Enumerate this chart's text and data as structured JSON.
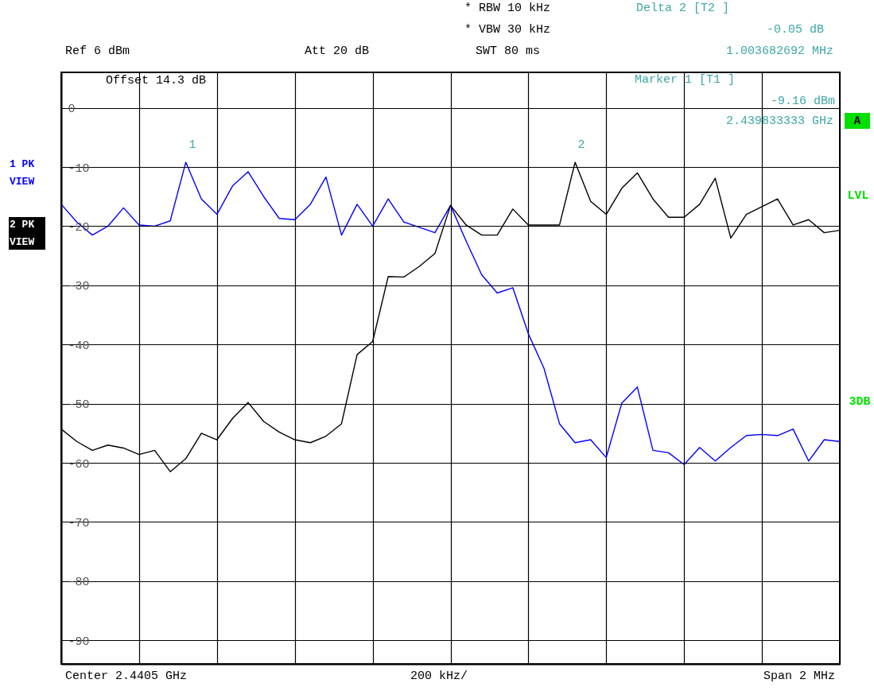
{
  "chart_data": {
    "type": "line",
    "categories": [
      null,
      null,
      null,
      null,
      null,
      null,
      null,
      null,
      null,
      null,
      null,
      null,
      null,
      null,
      null,
      null,
      null,
      null,
      null,
      null,
      null,
      null,
      null,
      null,
      null,
      null,
      null,
      null,
      null,
      null,
      null,
      null,
      null,
      null,
      null,
      null,
      null,
      null,
      null,
      null,
      null,
      null,
      null,
      null,
      null,
      null,
      null,
      null,
      null,
      null,
      null
    ],
    "ylim": [
      -94,
      6
    ],
    "yticks": [
      0,
      -10,
      -20,
      -30,
      -40,
      -50,
      -60,
      -70,
      -80,
      -90
    ],
    "tick_labels": "y",
    "grid": true,
    "line_style": "solid",
    "series": [
      {
        "name": "1 PK VIEW",
        "color": "#0000ff",
        "values": [
          -16.3,
          -19.3,
          -21.5,
          -20.0,
          -16.9,
          -19.8,
          -20.0,
          -19.1,
          -9.2,
          -15.4,
          -18.0,
          -13.2,
          -10.8,
          -15.0,
          -18.7,
          -18.9,
          -16.3,
          -11.7,
          -21.5,
          -16.3,
          -20.0,
          -15.4,
          -19.3,
          -20.2,
          -21.1,
          -16.5,
          -22.5,
          -28.2,
          -31.3,
          -30.4,
          -38.2,
          -44.0,
          -53.4,
          -56.6,
          -56.1,
          -59.1,
          -49.9,
          -47.2,
          -57.9,
          -58.3,
          -60.3,
          -57.4,
          -59.7,
          -57.4,
          -55.4,
          -55.2,
          -55.4,
          -54.3,
          -59.7,
          -56.1,
          -56.4
        ]
      },
      {
        "name": "2 PK VIEW",
        "color": "#000000",
        "values": [
          -54.3,
          -56.4,
          -57.9,
          -57.0,
          -57.5,
          -58.6,
          -57.9,
          -61.5,
          -59.3,
          -55.0,
          -56.1,
          -52.5,
          -49.8,
          -53.0,
          -54.8,
          -56.1,
          -56.6,
          -55.5,
          -53.4,
          -41.7,
          -39.5,
          -28.5,
          -28.6,
          -26.8,
          -24.6,
          -16.5,
          -19.8,
          -21.5,
          -21.5,
          -17.1,
          -19.8,
          -19.8,
          -19.8,
          -9.2,
          -15.8,
          -18.0,
          -13.6,
          -11.0,
          -15.4,
          -18.5,
          -18.5,
          -16.3,
          -11.9,
          -22.0,
          -18.0,
          -16.7,
          -15.4,
          -19.8,
          -18.9,
          -21.1,
          -20.7
        ]
      }
    ],
    "annotations": [
      "Ref 6 dBm",
      "Att 20 dB",
      "* RBW 10 kHz",
      "* VBW 30 kHz",
      "SWT 80 ms",
      "Delta 2 [T2 ]",
      "-0.05 dB",
      "1.003682692 MHz",
      "Offset 14.3 dB",
      "Marker 1 [T1 ]",
      "-9.16 dBm",
      "2.439833333 GHz",
      "A",
      "LVL",
      "3DB",
      "Center 2.4405 GHz",
      "200 kHz/",
      "Span 2 MHz",
      "1",
      "2"
    ]
  }
}
